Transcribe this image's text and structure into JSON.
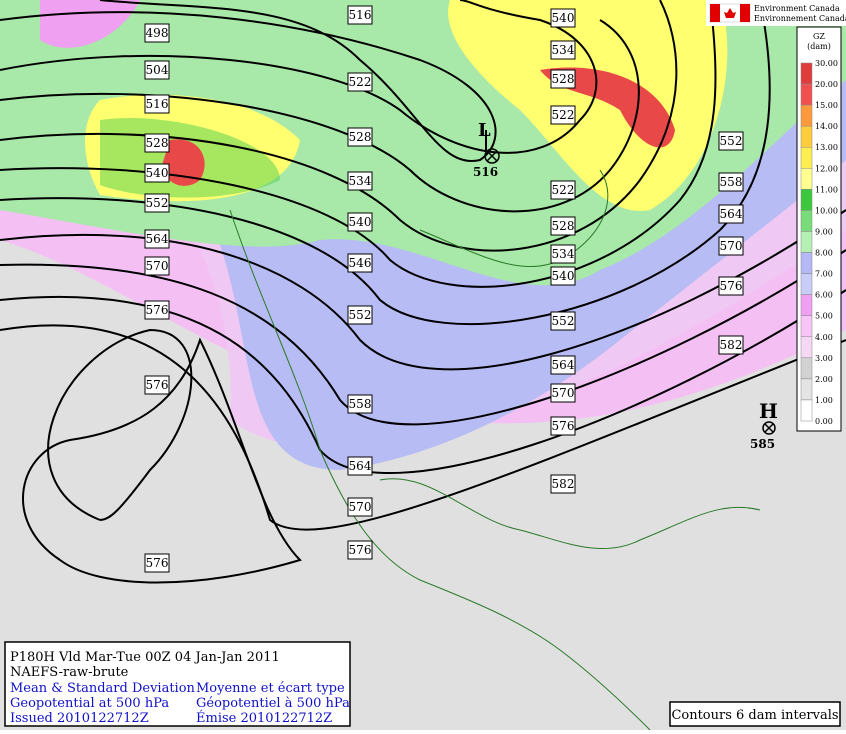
{
  "header": {
    "agency_en": "Environment Canada",
    "agency_fr": "Environnement Canada"
  },
  "legend": {
    "title": "GZ",
    "unit": "(dam)",
    "levels": [
      {
        "label": "30.00",
        "color": "#e03c3c"
      },
      {
        "label": "20.00",
        "color": "#f05050"
      },
      {
        "label": "15.00",
        "color": "#ff9a3c"
      },
      {
        "label": "14.00",
        "color": "#ffcc3c"
      },
      {
        "label": "13.00",
        "color": "#ffee50"
      },
      {
        "label": "12.00",
        "color": "#ffff90"
      },
      {
        "label": "11.00",
        "color": "#3cc83c"
      },
      {
        "label": "10.00",
        "color": "#78dc78"
      },
      {
        "label": "9.00",
        "color": "#b4f0b4"
      },
      {
        "label": "8.00",
        "color": "#b4b8f4"
      },
      {
        "label": "7.00",
        "color": "#c8ccf8"
      },
      {
        "label": "6.00",
        "color": "#f0a0f0"
      },
      {
        "label": "5.00",
        "color": "#f8c4f8"
      },
      {
        "label": "4.00",
        "color": "#f4d8f4"
      },
      {
        "label": "3.00",
        "color": "#d2d2d2"
      },
      {
        "label": "2.00",
        "color": "#e4e4e4"
      },
      {
        "label": "1.00",
        "color": "#ffffff"
      },
      {
        "label": "0.00",
        "color": "#ffffff"
      }
    ]
  },
  "contour_labels": [
    "498",
    "504",
    "516",
    "528",
    "540",
    "552",
    "564",
    "570",
    "576",
    "576",
    "576",
    "516",
    "522",
    "528",
    "534",
    "540",
    "546",
    "552",
    "558",
    "564",
    "570",
    "576",
    "540",
    "534",
    "528",
    "522",
    "522",
    "528",
    "534",
    "540",
    "552",
    "564",
    "570",
    "576",
    "582",
    "552",
    "558",
    "564",
    "570",
    "576",
    "582"
  ],
  "centers": [
    {
      "symbol": "L",
      "value": "516"
    },
    {
      "symbol": "H",
      "value": "585"
    }
  ],
  "info": {
    "line1": "P180H Vld Mar-Tue 00Z 04 Jan-Jan 2011",
    "line2": "NAEFS-raw-brute",
    "rows": [
      [
        "Mean & Standard Deviation",
        "Moyenne et écart type"
      ],
      [
        "Geopotential at 500 hPa",
        "Géopotentiel à 500 hPa"
      ],
      [
        "Issued 2010122712Z",
        "Émise 2010122712Z"
      ]
    ]
  },
  "note": "Contours 6 dam intervals"
}
